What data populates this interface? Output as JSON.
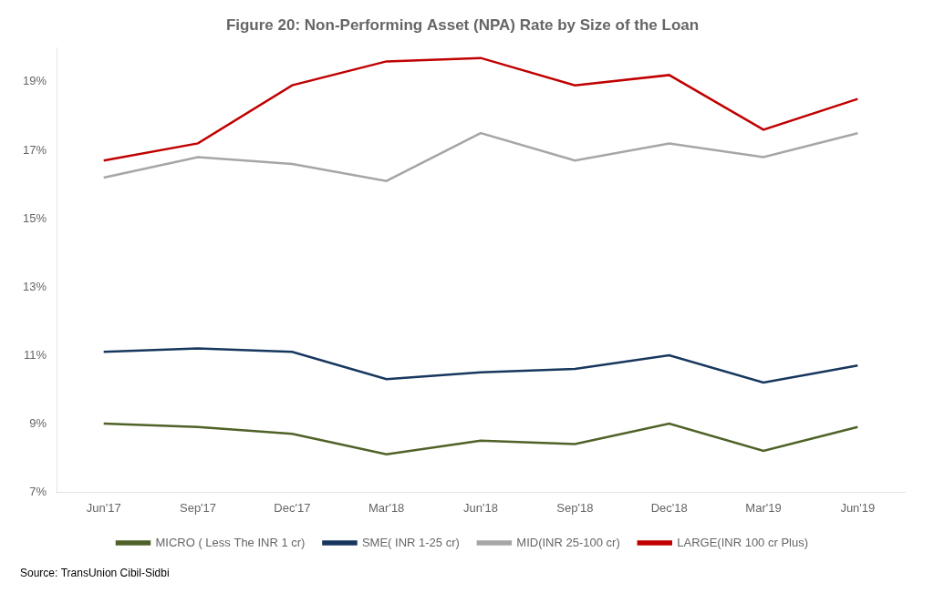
{
  "chart_data": {
    "type": "line",
    "title": "Figure 20: Non-Performing Asset (NPA) Rate by Size of the Loan",
    "annotations": [
      "Source: TransUnion Cibil-Sidbi"
    ],
    "categories": [
      "Jun'17",
      "Sep'17",
      "Dec'17",
      "Mar'18",
      "Jun'18",
      "Sep'18",
      "Dec'18",
      "Mar'19",
      "Jun'19"
    ],
    "series": [
      {
        "name": "MICRO ( Less The INR 1 cr)",
        "color": "#4f6228",
        "values": [
          9.0,
          8.9,
          8.7,
          8.1,
          8.5,
          8.4,
          9.0,
          8.2,
          8.9
        ]
      },
      {
        "name": "SME( INR 1-25 cr)",
        "color": "#17375e",
        "values": [
          11.1,
          11.2,
          11.1,
          10.3,
          10.5,
          10.6,
          11.0,
          10.2,
          10.7
        ]
      },
      {
        "name": "MID(INR 25-100 cr)",
        "color": "#a6a6a6",
        "values": [
          16.2,
          16.8,
          16.6,
          16.1,
          17.5,
          16.7,
          17.2,
          16.8,
          17.5
        ]
      },
      {
        "name": "LARGE(INR 100 cr Plus)",
        "color": "#c00000",
        "values": [
          16.7,
          17.2,
          18.9,
          19.6,
          19.7,
          18.9,
          19.2,
          17.6,
          18.5
        ]
      }
    ],
    "ylim": [
      7,
      20
    ],
    "yticks": [
      {
        "value": 7,
        "label": "7%"
      },
      {
        "value": 9,
        "label": "9%"
      },
      {
        "value": 11,
        "label": "11%"
      },
      {
        "value": 13,
        "label": "13%"
      },
      {
        "value": 15,
        "label": "15%"
      },
      {
        "value": 17,
        "label": "17%"
      },
      {
        "value": 19,
        "label": "19%"
      }
    ],
    "grid": false,
    "legend": "bottom"
  }
}
